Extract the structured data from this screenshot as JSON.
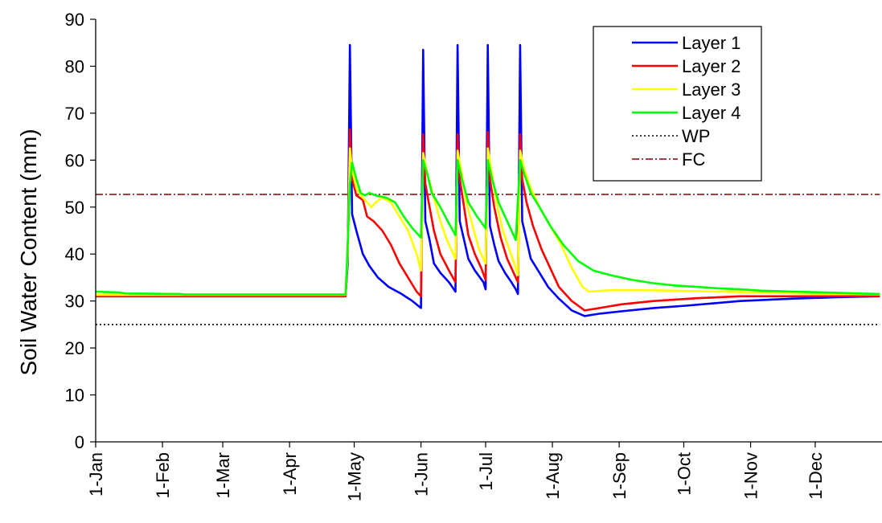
{
  "chart_data": {
    "type": "line",
    "title": "",
    "xlabel": "",
    "ylabel": "Soil Water Content (mm)",
    "x_unit": "day-of-year",
    "xlim": [
      1,
      365
    ],
    "ylim": [
      0,
      90
    ],
    "yticks": [
      0,
      10,
      20,
      30,
      40,
      50,
      60,
      70,
      80,
      90
    ],
    "xticks": [
      {
        "label": "1-Jan",
        "day": 1
      },
      {
        "label": "1-Feb",
        "day": 32
      },
      {
        "label": "1-Mar",
        "day": 60
      },
      {
        "label": "1-Apr",
        "day": 91
      },
      {
        "label": "1-May",
        "day": 121
      },
      {
        "label": "1-Jun",
        "day": 152
      },
      {
        "label": "1-Jul",
        "day": 182
      },
      {
        "label": "1-Aug",
        "day": 213
      },
      {
        "label": "1-Sep",
        "day": 244
      },
      {
        "label": "1-Oct",
        "day": 274
      },
      {
        "label": "1-Nov",
        "day": 305
      },
      {
        "label": "1-Dec",
        "day": 335
      }
    ],
    "grid": false,
    "legend_position": "top-right",
    "series": [
      {
        "name": "Layer 1",
        "color": "#0000ff",
        "style": "solid",
        "points": [
          [
            1,
            31.0
          ],
          [
            117,
            31.0
          ],
          [
            118,
            38
          ],
          [
            119,
            84.5
          ],
          [
            120,
            48.5
          ],
          [
            122,
            45
          ],
          [
            125,
            40
          ],
          [
            128,
            37.5
          ],
          [
            132,
            35
          ],
          [
            137,
            33
          ],
          [
            143,
            31.5
          ],
          [
            148,
            30
          ],
          [
            152,
            28.5
          ],
          [
            153,
            83.5
          ],
          [
            154,
            47
          ],
          [
            156,
            43
          ],
          [
            158,
            38
          ],
          [
            161,
            36
          ],
          [
            165,
            34
          ],
          [
            168,
            32
          ],
          [
            169,
            84.5
          ],
          [
            170,
            47
          ],
          [
            172,
            43
          ],
          [
            174,
            39
          ],
          [
            177,
            36.5
          ],
          [
            181,
            34
          ],
          [
            182,
            32.5
          ],
          [
            183,
            84.5
          ],
          [
            184,
            46
          ],
          [
            186,
            42
          ],
          [
            188,
            38.5
          ],
          [
            191,
            36
          ],
          [
            194,
            34
          ],
          [
            196,
            32.5
          ],
          [
            197,
            31.5
          ],
          [
            198,
            84.5
          ],
          [
            199,
            47
          ],
          [
            201,
            43
          ],
          [
            203,
            39
          ],
          [
            207,
            36
          ],
          [
            211,
            33
          ],
          [
            216,
            30.5
          ],
          [
            222,
            28
          ],
          [
            228,
            26.8
          ],
          [
            235,
            27.3
          ],
          [
            245,
            27.8
          ],
          [
            260,
            28.5
          ],
          [
            275,
            29
          ],
          [
            300,
            30
          ],
          [
            325,
            30.5
          ],
          [
            345,
            30.8
          ],
          [
            365,
            31
          ]
        ]
      },
      {
        "name": "Layer 2",
        "color": "#ff0000",
        "style": "solid",
        "points": [
          [
            1,
            31.0
          ],
          [
            117,
            31.0
          ],
          [
            118,
            40
          ],
          [
            119,
            66.5
          ],
          [
            120,
            56
          ],
          [
            122,
            52.5
          ],
          [
            125,
            51.5
          ],
          [
            127,
            48
          ],
          [
            130,
            47
          ],
          [
            134,
            45
          ],
          [
            138,
            42
          ],
          [
            142,
            38
          ],
          [
            146,
            35
          ],
          [
            150,
            32
          ],
          [
            152,
            31
          ],
          [
            153,
            65.5
          ],
          [
            154,
            55
          ],
          [
            156,
            50
          ],
          [
            158,
            45
          ],
          [
            161,
            40
          ],
          [
            165,
            36.5
          ],
          [
            168,
            34
          ],
          [
            169,
            65.5
          ],
          [
            170,
            56
          ],
          [
            172,
            50
          ],
          [
            174,
            44
          ],
          [
            177,
            40
          ],
          [
            180,
            37
          ],
          [
            182,
            34.5
          ],
          [
            183,
            66
          ],
          [
            184,
            56
          ],
          [
            186,
            50
          ],
          [
            189,
            43.5
          ],
          [
            192,
            39
          ],
          [
            195,
            36
          ],
          [
            197,
            34
          ],
          [
            198,
            65.5
          ],
          [
            199,
            56
          ],
          [
            201,
            51
          ],
          [
            204,
            46
          ],
          [
            208,
            41
          ],
          [
            212,
            37
          ],
          [
            216,
            33
          ],
          [
            222,
            30
          ],
          [
            228,
            28
          ],
          [
            235,
            28.5
          ],
          [
            245,
            29.3
          ],
          [
            260,
            30
          ],
          [
            280,
            30.6
          ],
          [
            300,
            31
          ],
          [
            330,
            31
          ],
          [
            365,
            31
          ]
        ]
      },
      {
        "name": "Layer 3",
        "color": "#ffff00",
        "style": "solid",
        "points": [
          [
            1,
            31.3
          ],
          [
            20,
            31.3
          ],
          [
            30,
            31.3
          ],
          [
            117,
            31.3
          ],
          [
            118,
            40
          ],
          [
            119,
            62.5
          ],
          [
            120,
            58
          ],
          [
            122,
            54
          ],
          [
            124,
            52.5
          ],
          [
            127,
            51
          ],
          [
            129,
            50
          ],
          [
            131,
            51
          ],
          [
            134,
            52
          ],
          [
            138,
            51
          ],
          [
            142,
            48
          ],
          [
            146,
            45
          ],
          [
            150,
            40
          ],
          [
            152,
            36.5
          ],
          [
            153,
            61.5
          ],
          [
            155,
            57
          ],
          [
            158,
            52
          ],
          [
            161,
            47
          ],
          [
            164,
            43
          ],
          [
            168,
            39
          ],
          [
            169,
            62
          ],
          [
            171,
            57
          ],
          [
            173,
            51
          ],
          [
            176,
            46
          ],
          [
            179,
            41
          ],
          [
            182,
            38
          ],
          [
            183,
            62.5
          ],
          [
            185,
            57
          ],
          [
            187,
            51
          ],
          [
            190,
            45
          ],
          [
            193,
            41
          ],
          [
            196,
            37
          ],
          [
            197,
            35.5
          ],
          [
            198,
            62
          ],
          [
            200,
            58
          ],
          [
            203,
            54
          ],
          [
            207,
            50
          ],
          [
            212,
            46
          ],
          [
            217,
            42
          ],
          [
            222,
            37
          ],
          [
            227,
            33
          ],
          [
            230,
            32
          ],
          [
            240,
            32.3
          ],
          [
            255,
            32.3
          ],
          [
            270,
            32.2
          ],
          [
            290,
            32
          ],
          [
            310,
            31.8
          ],
          [
            340,
            31.5
          ],
          [
            365,
            31.4
          ]
        ]
      },
      {
        "name": "Layer 4",
        "color": "#00ff00",
        "style": "solid",
        "points": [
          [
            1,
            32
          ],
          [
            12,
            31.8
          ],
          [
            15,
            31.6
          ],
          [
            40,
            31.5
          ],
          [
            42,
            31.4
          ],
          [
            117,
            31.4
          ],
          [
            118,
            42
          ],
          [
            119,
            55
          ],
          [
            120,
            59.5
          ],
          [
            122,
            56
          ],
          [
            124,
            53
          ],
          [
            126,
            52.5
          ],
          [
            128,
            53
          ],
          [
            131,
            52.5
          ],
          [
            136,
            52
          ],
          [
            140,
            51
          ],
          [
            144,
            48
          ],
          [
            148,
            45.5
          ],
          [
            152,
            43.5
          ],
          [
            153,
            60
          ],
          [
            155,
            57
          ],
          [
            157,
            53
          ],
          [
            161,
            50
          ],
          [
            165,
            46.5
          ],
          [
            168,
            44
          ],
          [
            169,
            60
          ],
          [
            171,
            56
          ],
          [
            174,
            51
          ],
          [
            178,
            48
          ],
          [
            182,
            45.5
          ],
          [
            183,
            60
          ],
          [
            185,
            56
          ],
          [
            188,
            51
          ],
          [
            192,
            47
          ],
          [
            196,
            43
          ],
          [
            198,
            60
          ],
          [
            200,
            57
          ],
          [
            203,
            53
          ],
          [
            207,
            50
          ],
          [
            212,
            46
          ],
          [
            218,
            42
          ],
          [
            225,
            38.5
          ],
          [
            232,
            36.5
          ],
          [
            240,
            35.5
          ],
          [
            250,
            34.5
          ],
          [
            260,
            33.8
          ],
          [
            270,
            33.3
          ],
          [
            280,
            33
          ],
          [
            290,
            32.7
          ],
          [
            300,
            32.5
          ],
          [
            310,
            32.2
          ],
          [
            325,
            32
          ],
          [
            340,
            31.8
          ],
          [
            355,
            31.6
          ],
          [
            365,
            31.5
          ]
        ]
      },
      {
        "name": "WP",
        "color": "#000000",
        "style": "dotted",
        "points": [
          [
            1,
            25
          ],
          [
            365,
            25
          ]
        ]
      },
      {
        "name": "FC",
        "color": "#8b0000",
        "style": "dashdot",
        "points": [
          [
            1,
            52.7
          ],
          [
            365,
            52.7
          ]
        ]
      }
    ]
  }
}
